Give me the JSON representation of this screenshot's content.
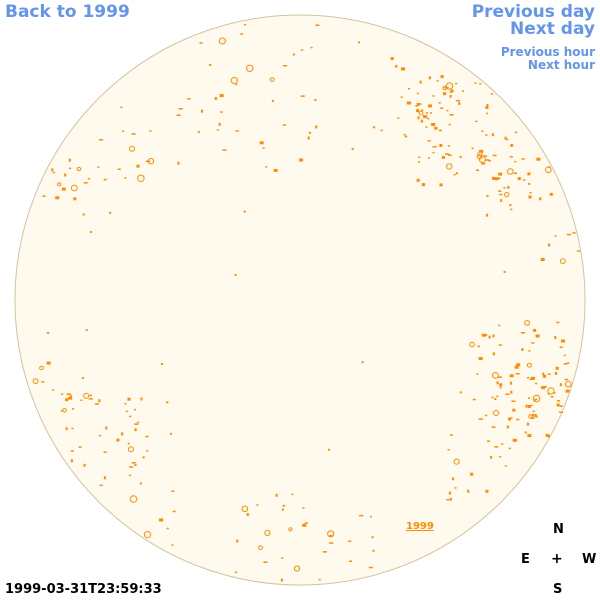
{
  "nav": {
    "back_label": "Back to 1999",
    "previous_day_label": "Previous day",
    "next_day_label": "Next day",
    "previous_hour_label": "Previous hour",
    "next_hour_label": "Next hour"
  },
  "sky": {
    "background_color": "#fffaed",
    "border_color": "#d2c3a0",
    "marker_color": "#ff8c00",
    "year_label": "1999"
  },
  "compass": {
    "north": "N",
    "east": "E",
    "center": "+",
    "west": "W",
    "south": "S"
  },
  "timestamp": "1999-03-31T23:59:33"
}
